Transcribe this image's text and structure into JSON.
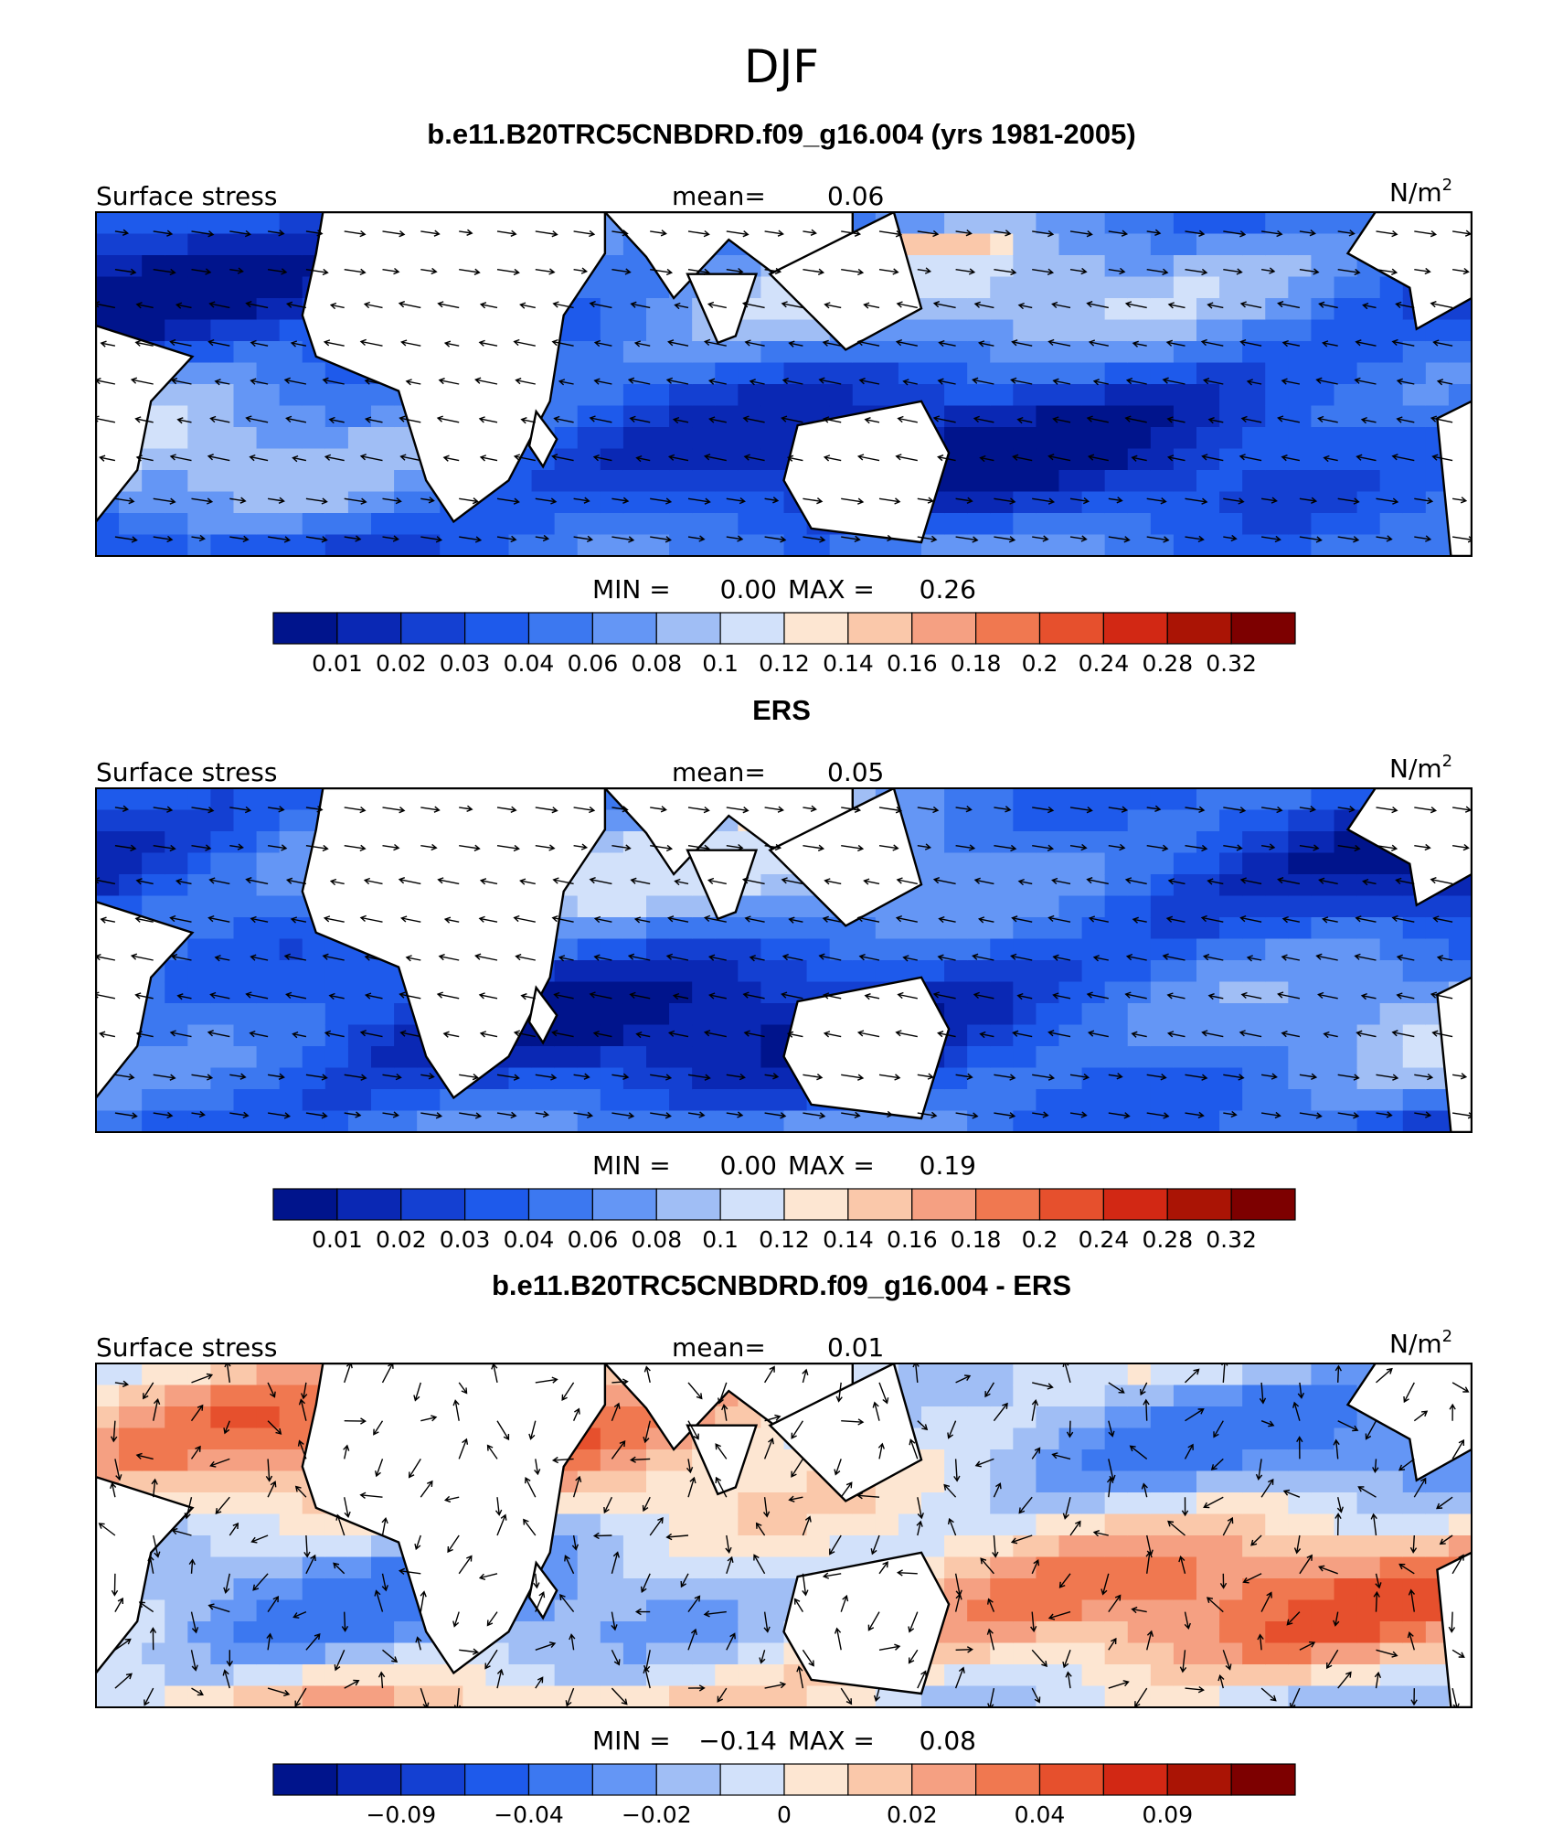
{
  "figure": {
    "title": "DJF"
  },
  "colors": {
    "sequential": [
      "#00148c",
      "#0a28b4",
      "#1440d2",
      "#1e5aeb",
      "#3c78f0",
      "#6496f5",
      "#a0bef5",
      "#d2e1fa",
      "#fde6d2",
      "#fac8aa",
      "#f5a082",
      "#f07850",
      "#e6502d",
      "#d22814",
      "#aa1405",
      "#7d0000"
    ]
  },
  "chart_data": [
    {
      "type": "heatmap",
      "title": "b.e11.B20TRC5CNBDRD.f09_g16.004 (yrs 1981-2005)",
      "variable": "Surface stress",
      "mean_label": "mean=",
      "mean": "0.06",
      "units_base": "N/m",
      "units_exp": "2",
      "min_label": "MIN =",
      "min": "0.00",
      "max_label": "MAX =",
      "max": "0.26",
      "colorbar_ticks": [
        "0.01",
        "0.02",
        "0.03",
        "0.04",
        "0.06",
        "0.08",
        "0.1",
        "0.12",
        "0.14",
        "0.16",
        "0.18",
        "0.2",
        "0.24",
        "0.28",
        "0.32"
      ]
    },
    {
      "type": "heatmap",
      "title": "ERS",
      "variable": "Surface stress",
      "mean_label": "mean=",
      "mean": "0.05",
      "units_base": "N/m",
      "units_exp": "2",
      "min_label": "MIN =",
      "min": "0.00",
      "max_label": "MAX =",
      "max": "0.19",
      "colorbar_ticks": [
        "0.01",
        "0.02",
        "0.03",
        "0.04",
        "0.06",
        "0.08",
        "0.1",
        "0.12",
        "0.14",
        "0.16",
        "0.18",
        "0.2",
        "0.24",
        "0.28",
        "0.32"
      ]
    },
    {
      "type": "heatmap",
      "title": "b.e11.B20TRC5CNBDRD.f09_g16.004 - ERS",
      "variable": "Surface stress",
      "mean_label": "mean=",
      "mean": "0.01",
      "units_base": "N/m",
      "units_exp": "2",
      "min_label": "MIN =",
      "min": "−0.14",
      "max_label": "MAX =",
      "max": "0.08",
      "colorbar_ticks": [
        "−0.09",
        "−0.04",
        "−0.02",
        "0",
        "0.02",
        "0.04",
        "0.09"
      ]
    }
  ]
}
